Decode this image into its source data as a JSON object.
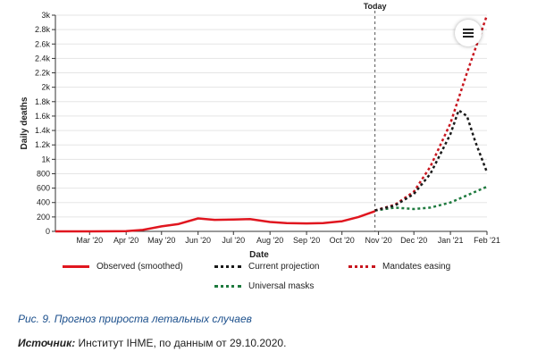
{
  "chart_data": {
    "type": "line",
    "xlabel": "Date",
    "ylabel": "Daily deaths",
    "ylim": [
      0,
      3000
    ],
    "y_ticks": [
      "0",
      "200",
      "400",
      "600",
      "800",
      "1k",
      "1.2k",
      "1.4k",
      "1.6k",
      "1.8k",
      "2k",
      "2.2k",
      "2.4k",
      "2.6k",
      "2.8k",
      "3k"
    ],
    "x_ticks": [
      "Mar '20",
      "Apr '20",
      "May '20",
      "Jun '20",
      "Jul '20",
      "Aug '20",
      "Sep '20",
      "Oct '20",
      "Nov '20",
      "Dec '20",
      "Jan '21",
      "Feb '21"
    ],
    "x_tick_dates": [
      "2020-03-01",
      "2020-04-01",
      "2020-05-01",
      "2020-06-01",
      "2020-07-01",
      "2020-08-01",
      "2020-09-01",
      "2020-10-01",
      "2020-11-01",
      "2020-12-01",
      "2021-01-01",
      "2021-02-01"
    ],
    "xlim": [
      "2020-02-01",
      "2021-02-01"
    ],
    "today_marker": {
      "label": "Today",
      "date": "2020-10-29"
    },
    "grid": "horizontal",
    "series": [
      {
        "name": "Observed (smoothed)",
        "color": "#e0161f",
        "style": "solid",
        "points": [
          [
            "2020-02-01",
            0
          ],
          [
            "2020-03-01",
            0
          ],
          [
            "2020-04-01",
            2
          ],
          [
            "2020-04-15",
            20
          ],
          [
            "2020-05-01",
            70
          ],
          [
            "2020-05-15",
            100
          ],
          [
            "2020-06-01",
            180
          ],
          [
            "2020-06-15",
            160
          ],
          [
            "2020-07-01",
            165
          ],
          [
            "2020-07-15",
            170
          ],
          [
            "2020-08-01",
            130
          ],
          [
            "2020-08-15",
            115
          ],
          [
            "2020-09-01",
            110
          ],
          [
            "2020-09-15",
            115
          ],
          [
            "2020-10-01",
            140
          ],
          [
            "2020-10-15",
            200
          ],
          [
            "2020-10-29",
            280
          ]
        ]
      },
      {
        "name": "Current projection",
        "color": "#1a1a1a",
        "style": "dotted",
        "points": [
          [
            "2020-10-29",
            290
          ],
          [
            "2020-11-15",
            360
          ],
          [
            "2020-12-01",
            520
          ],
          [
            "2020-12-15",
            800
          ],
          [
            "2021-01-01",
            1350
          ],
          [
            "2021-01-08",
            1680
          ],
          [
            "2021-01-15",
            1600
          ],
          [
            "2021-01-22",
            1250
          ],
          [
            "2021-02-01",
            820
          ]
        ]
      },
      {
        "name": "Mandates easing",
        "color": "#c8161f",
        "style": "dotted",
        "points": [
          [
            "2020-10-29",
            290
          ],
          [
            "2020-11-15",
            370
          ],
          [
            "2020-12-01",
            550
          ],
          [
            "2020-12-15",
            900
          ],
          [
            "2021-01-01",
            1500
          ],
          [
            "2021-01-15",
            2200
          ],
          [
            "2021-02-01",
            3000
          ]
        ]
      },
      {
        "name": "Universal masks",
        "color": "#1e7a3e",
        "style": "dotted",
        "points": [
          [
            "2020-10-29",
            290
          ],
          [
            "2020-11-15",
            330
          ],
          [
            "2020-12-01",
            310
          ],
          [
            "2020-12-15",
            330
          ],
          [
            "2021-01-01",
            400
          ],
          [
            "2021-01-15",
            500
          ],
          [
            "2021-02-01",
            620
          ]
        ]
      }
    ]
  },
  "caption": "Рис. 9. Прогноз прироста летальных случаев",
  "source": {
    "label": "Источник:",
    "text": "Институт IHME, по данным от 29.10.2020."
  },
  "menu_icon": "hamburger-icon",
  "colors": {
    "caption": "#1b4f8c",
    "axis": "#333333",
    "grid": "#e5e5e5"
  }
}
